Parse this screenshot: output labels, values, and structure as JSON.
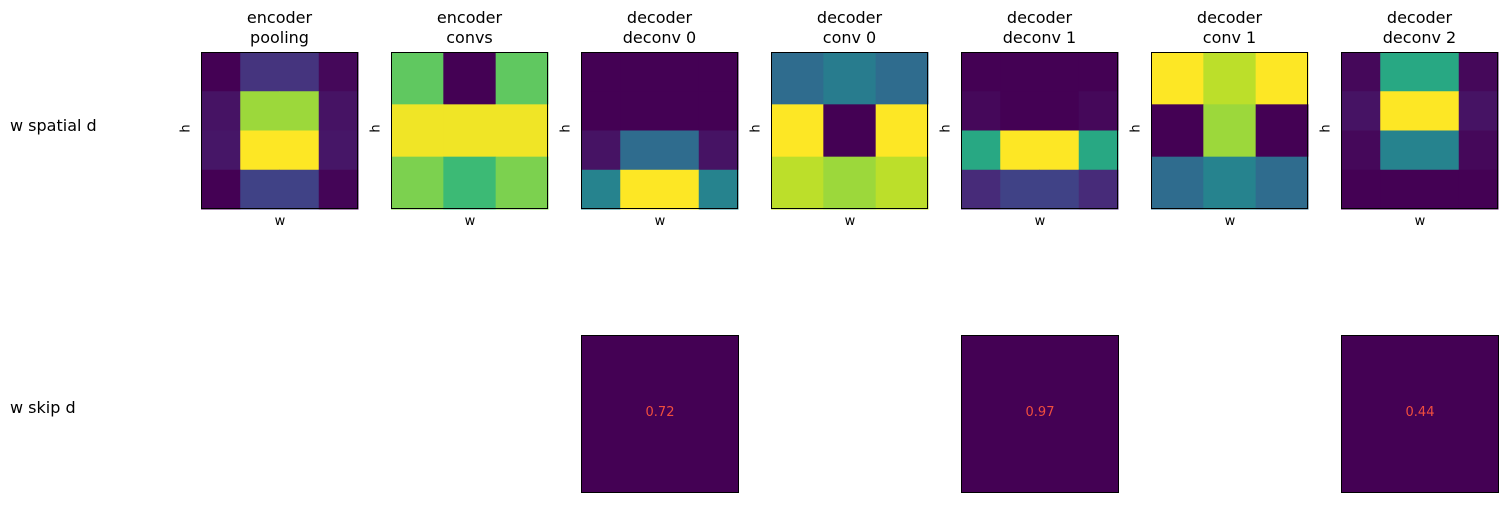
{
  "row_labels": [
    "w spatial d",
    "w skip d"
  ],
  "chart_data": {
    "type": "heatmap",
    "colormap": "viridis",
    "xlabel": "w",
    "ylabel": "h",
    "panels": [
      {
        "title": [
          "encoder",
          "pooling"
        ],
        "matrix": [
          [
            0.0,
            0.15,
            0.15,
            0.02
          ],
          [
            0.05,
            0.85,
            0.85,
            0.05
          ],
          [
            0.06,
            1.0,
            1.0,
            0.06
          ],
          [
            0.0,
            0.2,
            0.2,
            0.01
          ]
        ],
        "cols": [
          0,
          1,
          1,
          2
        ],
        "skip": null
      },
      {
        "title": [
          "encoder",
          "convs"
        ],
        "matrix": [
          [
            0.75,
            0.0,
            0.75
          ],
          [
            0.98,
            0.98,
            0.98
          ],
          [
            0.8,
            0.68,
            0.8
          ]
        ],
        "skip": null
      },
      {
        "title": [
          "decoder",
          "deconv 0"
        ],
        "matrix": [
          [
            0.0,
            0.0,
            0.0
          ],
          [
            0.0,
            0.0,
            0.0
          ],
          [
            0.05,
            0.35,
            0.05
          ],
          [
            0.45,
            1.0,
            0.45
          ]
        ],
        "cols": [
          0,
          1,
          1,
          2
        ],
        "skip": "0.72"
      },
      {
        "title": [
          "decoder",
          "conv 0"
        ],
        "matrix": [
          [
            0.35,
            0.42,
            0.35
          ],
          [
            1.0,
            0.0,
            1.0
          ],
          [
            0.9,
            0.85,
            0.9
          ]
        ],
        "skip": null
      },
      {
        "title": [
          "decoder",
          "deconv 1"
        ],
        "matrix": [
          [
            0.0,
            0.0,
            0.0,
            0.0
          ],
          [
            0.02,
            0.0,
            0.0,
            0.02
          ],
          [
            0.6,
            1.0,
            1.0,
            0.6
          ],
          [
            0.12,
            0.2,
            0.2,
            0.12
          ]
        ],
        "cols": [
          0,
          1,
          1,
          2
        ],
        "skip": "0.97"
      },
      {
        "title": [
          "decoder",
          "conv 1"
        ],
        "matrix": [
          [
            1.0,
            0.9,
            1.0
          ],
          [
            0.0,
            0.85,
            0.0
          ],
          [
            0.35,
            0.45,
            0.35
          ]
        ],
        "skip": null
      },
      {
        "title": [
          "decoder",
          "deconv 2"
        ],
        "matrix": [
          [
            0.02,
            0.6,
            0.02
          ],
          [
            0.05,
            1.0,
            0.05
          ],
          [
            0.02,
            0.45,
            0.02
          ],
          [
            0.0,
            0.0,
            0.0
          ]
        ],
        "cols": [
          0,
          1,
          1,
          2
        ],
        "skip": "0.44"
      }
    ]
  }
}
